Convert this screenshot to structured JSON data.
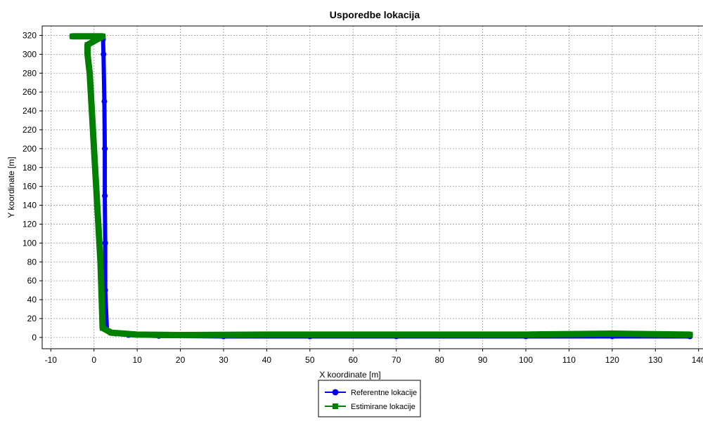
{
  "chart_data": {
    "type": "line",
    "title": "Usporedbe lokacija",
    "xlabel": "X koordinate [m]",
    "ylabel": "Y koordinate [m]",
    "xlim": [
      -12,
      142
    ],
    "ylim": [
      -12,
      330
    ],
    "xticks": [
      -10,
      0,
      10,
      20,
      30,
      40,
      50,
      60,
      70,
      80,
      90,
      100,
      110,
      120,
      130,
      140
    ],
    "yticks": [
      0,
      20,
      40,
      60,
      80,
      100,
      120,
      140,
      160,
      180,
      200,
      220,
      240,
      260,
      280,
      300,
      320
    ],
    "grid": true,
    "legend_position": "bottom-center",
    "series": [
      {
        "name": "Referentne lokacije",
        "color": "#0000ff",
        "marker": "circle",
        "x": [
          2.0,
          2.1,
          2.2,
          2.4,
          2.5,
          2.5,
          2.6,
          2.6,
          3,
          5,
          8,
          15,
          30,
          50,
          70,
          100,
          120,
          138
        ],
        "y": [
          318,
          316,
          300,
          250,
          200,
          150,
          100,
          50,
          8,
          4,
          2.5,
          1.5,
          1,
          1,
          1,
          1,
          1,
          1
        ]
      },
      {
        "name": "Estimirane lokacije",
        "color": "#008000",
        "marker": "square",
        "x": [
          -5,
          -1.5,
          2,
          -1.5,
          -1.5,
          -1.0,
          -0.5,
          0,
          0.5,
          1.0,
          1.5,
          2.0,
          4,
          10,
          20,
          40,
          70,
          100,
          120,
          138
        ],
        "y": [
          319,
          319,
          319,
          310,
          300,
          280,
          240,
          200,
          160,
          120,
          80,
          10,
          5,
          3,
          2.5,
          3,
          3,
          3,
          4,
          3
        ]
      }
    ]
  }
}
